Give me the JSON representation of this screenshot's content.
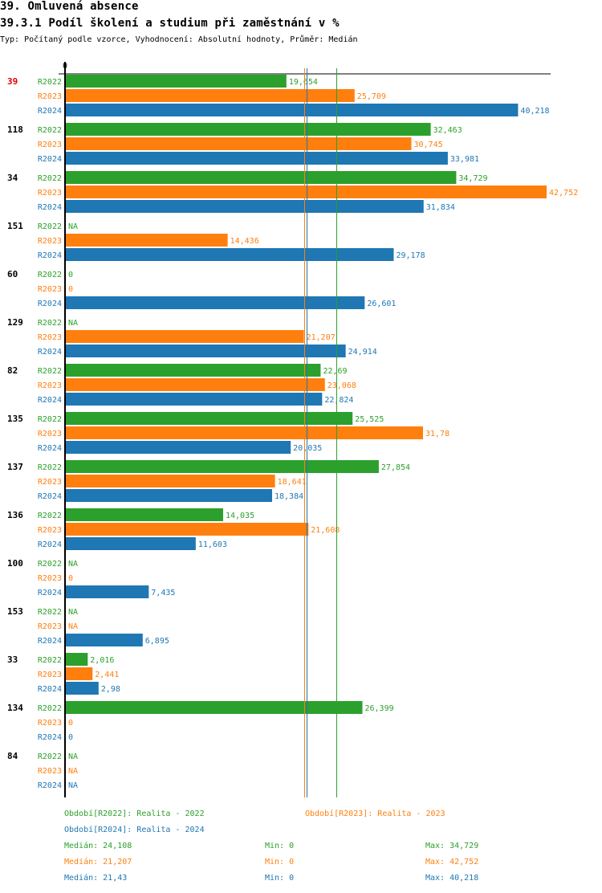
{
  "header": {
    "title": "39. Omluvená absence",
    "subtitle": "39.3.1 Podíl školení a studium při zaměstnání v %",
    "info": "Typ: Počítaný podle vzorce, Vyhodnocení: Absolutní hodnoty, Průměr: Medián"
  },
  "colors": {
    "R2022": "#2ca02c",
    "R2023": "#ff7f0e",
    "R2024": "#1f77b4",
    "highlight_group": "#e00000",
    "axis": "#000000"
  },
  "chart_data": {
    "type": "bar",
    "orientation": "horizontal",
    "title": "39.3.1 Podíl školení a studium při zaměstnání v %",
    "xlabel": "",
    "ylabel": "",
    "xlim": [
      0,
      42.752
    ],
    "x_tick_labels": [
      "0"
    ],
    "grid": false,
    "series_names": [
      "R2022",
      "R2023",
      "R2024"
    ],
    "highlighted_group": "39",
    "groups": [
      {
        "id": "39",
        "values": [
          {
            "series": "R2022",
            "value": 19.654,
            "label": "19,654"
          },
          {
            "series": "R2023",
            "value": 25.709,
            "label": "25,709"
          },
          {
            "series": "R2024",
            "value": 40.218,
            "label": "40,218"
          }
        ]
      },
      {
        "id": "118",
        "values": [
          {
            "series": "R2022",
            "value": 32.463,
            "label": "32,463"
          },
          {
            "series": "R2023",
            "value": 30.745,
            "label": "30,745"
          },
          {
            "series": "R2024",
            "value": 33.981,
            "label": "33,981"
          }
        ]
      },
      {
        "id": "34",
        "values": [
          {
            "series": "R2022",
            "value": 34.729,
            "label": "34,729"
          },
          {
            "series": "R2023",
            "value": 42.752,
            "label": "42,752"
          },
          {
            "series": "R2024",
            "value": 31.834,
            "label": "31,834"
          }
        ]
      },
      {
        "id": "151",
        "values": [
          {
            "series": "R2022",
            "value": null,
            "label": "NA"
          },
          {
            "series": "R2023",
            "value": 14.436,
            "label": "14,436"
          },
          {
            "series": "R2024",
            "value": 29.178,
            "label": "29,178"
          }
        ]
      },
      {
        "id": "60",
        "values": [
          {
            "series": "R2022",
            "value": 0,
            "label": "0"
          },
          {
            "series": "R2023",
            "value": 0,
            "label": "0"
          },
          {
            "series": "R2024",
            "value": 26.601,
            "label": "26,601"
          }
        ]
      },
      {
        "id": "129",
        "values": [
          {
            "series": "R2022",
            "value": null,
            "label": "NA"
          },
          {
            "series": "R2023",
            "value": 21.207,
            "label": "21,207"
          },
          {
            "series": "R2024",
            "value": 24.914,
            "label": "24,914"
          }
        ]
      },
      {
        "id": "82",
        "values": [
          {
            "series": "R2022",
            "value": 22.69,
            "label": "22,69"
          },
          {
            "series": "R2023",
            "value": 23.068,
            "label": "23,068"
          },
          {
            "series": "R2024",
            "value": 22.824,
            "label": "22,824"
          }
        ]
      },
      {
        "id": "135",
        "values": [
          {
            "series": "R2022",
            "value": 25.525,
            "label": "25,525"
          },
          {
            "series": "R2023",
            "value": 31.78,
            "label": "31,78"
          },
          {
            "series": "R2024",
            "value": 20.035,
            "label": "20,035"
          }
        ]
      },
      {
        "id": "137",
        "values": [
          {
            "series": "R2022",
            "value": 27.854,
            "label": "27,854"
          },
          {
            "series": "R2023",
            "value": 18.641,
            "label": "18,641"
          },
          {
            "series": "R2024",
            "value": 18.384,
            "label": "18,384"
          }
        ]
      },
      {
        "id": "136",
        "values": [
          {
            "series": "R2022",
            "value": 14.035,
            "label": "14,035"
          },
          {
            "series": "R2023",
            "value": 21.608,
            "label": "21,608"
          },
          {
            "series": "R2024",
            "value": 11.603,
            "label": "11,603"
          }
        ]
      },
      {
        "id": "100",
        "values": [
          {
            "series": "R2022",
            "value": null,
            "label": "NA"
          },
          {
            "series": "R2023",
            "value": 0,
            "label": "0"
          },
          {
            "series": "R2024",
            "value": 7.435,
            "label": "7,435"
          }
        ]
      },
      {
        "id": "153",
        "values": [
          {
            "series": "R2022",
            "value": null,
            "label": "NA"
          },
          {
            "series": "R2023",
            "value": null,
            "label": "NA"
          },
          {
            "series": "R2024",
            "value": 6.895,
            "label": "6,895"
          }
        ]
      },
      {
        "id": "33",
        "values": [
          {
            "series": "R2022",
            "value": 2.016,
            "label": "2,016"
          },
          {
            "series": "R2023",
            "value": 2.441,
            "label": "2,441"
          },
          {
            "series": "R2024",
            "value": 2.98,
            "label": "2,98"
          }
        ]
      },
      {
        "id": "134",
        "values": [
          {
            "series": "R2022",
            "value": 26.399,
            "label": "26,399"
          },
          {
            "series": "R2023",
            "value": 0,
            "label": "0"
          },
          {
            "series": "R2024",
            "value": 0,
            "label": "0"
          }
        ]
      },
      {
        "id": "84",
        "values": [
          {
            "series": "R2022",
            "value": null,
            "label": "NA"
          },
          {
            "series": "R2023",
            "value": null,
            "label": "NA"
          },
          {
            "series": "R2024",
            "value": null,
            "label": "NA"
          }
        ]
      }
    ],
    "median_lines": [
      {
        "series": "R2022",
        "value": 24.108
      },
      {
        "series": "R2023",
        "value": 21.207
      },
      {
        "series": "R2024",
        "value": 21.43
      }
    ]
  },
  "legend": {
    "periods": [
      {
        "series": "R2022",
        "text": "Období[R2022]: Realita - 2022"
      },
      {
        "series": "R2023",
        "text": "Období[R2023]: Realita - 2023"
      },
      {
        "series": "R2024",
        "text": "Období[R2024]: Realita - 2024"
      }
    ],
    "stats": [
      {
        "series": "R2022",
        "median": "Medián: 24,108",
        "min": "Min: 0",
        "max": "Max: 34,729"
      },
      {
        "series": "R2023",
        "median": "Medián: 21,207",
        "min": "Min: 0",
        "max": "Max: 42,752"
      },
      {
        "series": "R2024",
        "median": "Medián: 21,43",
        "min": "Min: 0",
        "max": "Max: 40,218"
      }
    ]
  }
}
